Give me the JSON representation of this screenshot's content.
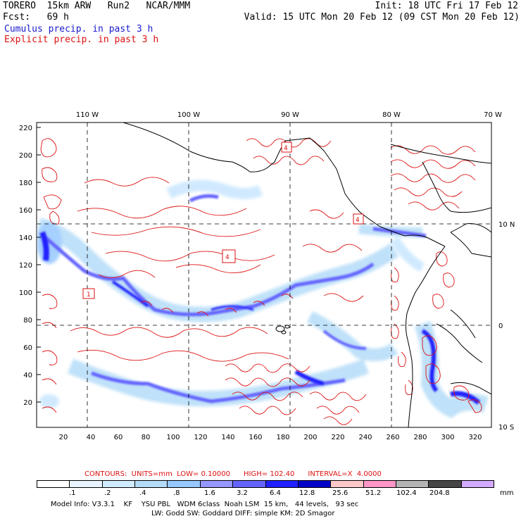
{
  "header": {
    "model": "TORERO",
    "resolution": "15km ARW",
    "run": "Run2",
    "org": "NCAR/MMM",
    "fcst_label": "Fcst:",
    "fcst_value": "69 h",
    "init": "Init: 18 UTC Fri 17 Feb 12",
    "valid": "Valid: 15 UTC Mon 20 Feb 12 (09 CST Mon 20 Feb 12)",
    "field1": "Cumulus precip. in past 3 h",
    "field2": "Explicit precip. in past 3 h",
    "field1_color": "#1a1acc",
    "field2_color": "#dd1111"
  },
  "map": {
    "lon_labels": [
      "110 W",
      "100 W",
      "90 W",
      "80 W",
      "70 W"
    ],
    "lat_labels": [
      "10 N",
      "0",
      "10 S"
    ],
    "y_ticks": [
      "220",
      "200",
      "180",
      "160",
      "140",
      "120",
      "100",
      "80",
      "60",
      "40",
      "20"
    ],
    "x_ticks": [
      "20",
      "40",
      "60",
      "80",
      "100",
      "120",
      "140",
      "160",
      "180",
      "200",
      "220",
      "240",
      "260",
      "280",
      "300",
      "320"
    ],
    "box_labels": [
      "4",
      "4",
      "1",
      "4"
    ]
  },
  "contours": {
    "text": "CONTOURS:  UNITS=mm  LOW= 0.10000      HIGH= 102.40      INTERVAL=X  4.0000",
    "color": "#dd1111"
  },
  "colorbar": {
    "labels": [
      ".1",
      ".2",
      ".4",
      ".8",
      "1.6",
      "3.2",
      "6.4",
      "12.8",
      "25.6",
      "51.2",
      "102.4",
      "204.8"
    ],
    "unit": "mm",
    "colors": [
      "#ffffff",
      "#e8f4ff",
      "#d2ecff",
      "#b4dcf8",
      "#96c8ff",
      "#9696ff",
      "#6464ff",
      "#2020ff",
      "#0000c8",
      "#ffc8c8",
      "#ff96c8",
      "#b4b4b4",
      "#464646",
      "#d2aaff"
    ]
  },
  "footer": {
    "line1": "Model Info: V3.3.1    KF    YSU PBL   WDM 6class  Noah LSM  15 km,   44 levels,   93 sec",
    "line2": "LW: Godd SW: Goddard DIFF: simple KM: 2D Smagor"
  }
}
